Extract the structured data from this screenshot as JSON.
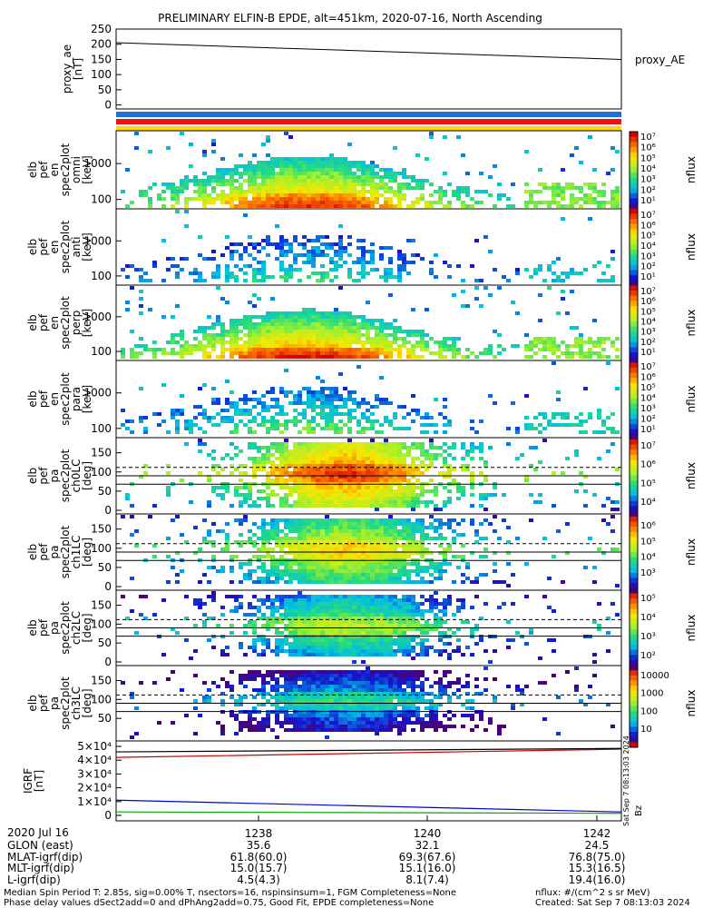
{
  "title": "PRELIMINARY ELFIN-B EPDE, alt=451km, 2020-07-16, North Ascending",
  "chart_data": [
    {
      "type": "line",
      "ylabel": [
        "proxy_ae",
        "[nT]"
      ],
      "yticks": [
        "250",
        "200",
        "150",
        "100",
        "50",
        "0"
      ],
      "ylim": [
        0,
        250
      ],
      "series": [
        {
          "x": [
            0,
            1
          ],
          "values": [
            205,
            150
          ]
        }
      ],
      "side_label": "proxy_AE"
    },
    {
      "type": "heatmap",
      "ylabel": [
        "elb",
        "pef",
        "en",
        "spec2plot",
        "omni",
        "[keV]"
      ],
      "yticks": [
        "1000",
        "100"
      ],
      "cbar": "nflux",
      "cb_range": "10^1 - 10^7",
      "intensity": 1.0
    },
    {
      "type": "heatmap",
      "ylabel": [
        "elb",
        "pef",
        "en",
        "spec2plot",
        "anti",
        "[keV]"
      ],
      "yticks": [
        "1000",
        "100"
      ],
      "cbar": "nflux",
      "intensity": 0.45
    },
    {
      "type": "heatmap",
      "ylabel": [
        "elb",
        "pef",
        "en",
        "spec2plot",
        "perp",
        "[keV]"
      ],
      "yticks": [
        "1000",
        "100"
      ],
      "cbar": "nflux",
      "intensity": 1.05
    },
    {
      "type": "heatmap",
      "ylabel": [
        "elb",
        "pef",
        "en",
        "spec2plot",
        "para",
        "[keV]"
      ],
      "yticks": [
        "1000",
        "100"
      ],
      "cbar": "nflux",
      "intensity": 0.55
    },
    {
      "type": "heatmap",
      "ylabel": [
        "elb",
        "pef",
        "pa",
        "spec2plot",
        "ch0LC",
        "[deg]"
      ],
      "yticks": [
        "150",
        "100",
        "50",
        "0"
      ],
      "cbar": "nflux",
      "intensity": 0.9
    },
    {
      "type": "heatmap",
      "ylabel": [
        "elb",
        "pef",
        "pa",
        "spec2plot",
        "ch1LC",
        "[deg]"
      ],
      "yticks": [
        "150",
        "100",
        "50",
        "0"
      ],
      "cbar": "nflux",
      "intensity": 0.7
    },
    {
      "type": "heatmap",
      "ylabel": [
        "elb",
        "pef",
        "pa",
        "spec2plot",
        "ch2LC",
        "[deg]"
      ],
      "yticks": [
        "150",
        "100",
        "50",
        "0"
      ],
      "cbar": "nflux",
      "intensity": 0.55
    },
    {
      "type": "heatmap",
      "ylabel": [
        "elb",
        "pef",
        "pa",
        "spec2plot",
        "ch3LC",
        "[deg]"
      ],
      "yticks": [
        "150",
        "100",
        "50"
      ],
      "cbar": "nflux",
      "intensity": 0.35
    },
    {
      "type": "line",
      "ylabel": [
        "IGRF",
        "[nT]"
      ],
      "yticks": [
        "5×10⁴",
        "4×10⁴",
        "3×10⁴",
        "2×10⁴",
        "1×10⁴",
        "0"
      ],
      "ylim": [
        0,
        50000
      ],
      "series": [
        {
          "color": "#cc0000",
          "values": [
            42000,
            48000
          ]
        },
        {
          "color": "#0000cc",
          "values": [
            11000,
            2500
          ]
        },
        {
          "color": "#00aa00",
          "values": [
            2500,
            1500
          ]
        },
        {
          "color": "#000000",
          "values": [
            46000,
            48500
          ]
        }
      ]
    }
  ],
  "cbar_labels": {
    "p1": [
      "10⁷",
      "10⁶",
      "10⁵",
      "10⁴",
      "10³",
      "10²",
      "10¹"
    ],
    "p5": [
      "10⁷",
      "10⁶",
      "10⁵",
      "10⁴"
    ],
    "p6": [
      "10⁶",
      "10⁵",
      "10⁴",
      "10³"
    ],
    "p7": [
      "10⁵",
      "10⁴",
      "10³",
      "10²"
    ],
    "p8": [
      "10000",
      "1000",
      "100",
      "10"
    ]
  },
  "cbar_title": "nflux",
  "igrf_legend": "Bz",
  "side_stamp": "Sat Sep  7 08:13:03 2024",
  "time_ticks": [
    "1238",
    "1240",
    "1242"
  ],
  "footer": {
    "row0": [
      "2020 Jul 16",
      "",
      "",
      ""
    ],
    "rows": [
      [
        "GLON (east)",
        "35.6",
        "32.1",
        "24.5"
      ],
      [
        "MLAT-igrf(dip)",
        "61.8(60.0)",
        "69.3(67.6)",
        "76.8(75.0)"
      ],
      [
        "MLT-igrf(dip)",
        "15.0(15.7)",
        "15.1(16.0)",
        "15.3(16.5)"
      ],
      [
        "L-igrf(dip)",
        "4.5(4.3)",
        "8.1(7.4)",
        "19.4(16.0)"
      ]
    ],
    "note1": "Median Spin Period T: 2.85s, sig=0.00% T, nsectors=16, nspinsinsum=1, FGM Completeness=None",
    "note2": "Phase delay values dSect2add=0 and dPhAng2add=0.75, Good Fit, EPDE completeness=None",
    "units": "nflux: #/(cm^2 s sr MeV)",
    "created": "Created: Sat Sep  7 08:13:03 2024"
  },
  "colors": {
    "bar_blue": "#1e6fd9",
    "bar_red": "#ee1111",
    "bar_yellow": "#ffd400"
  }
}
